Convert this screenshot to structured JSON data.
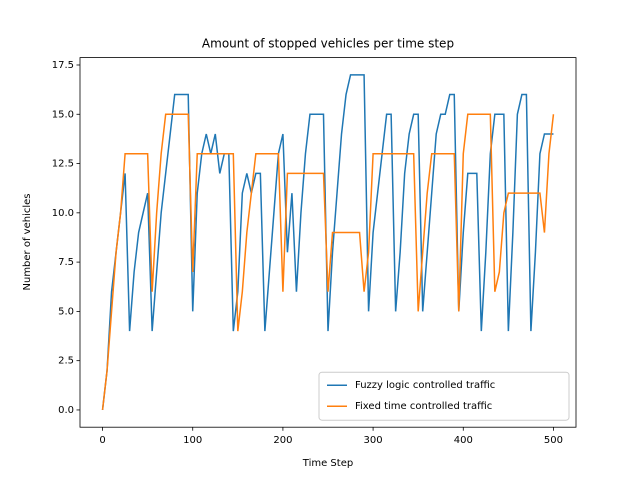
{
  "chart_data": {
    "type": "line",
    "title": "Amount of stopped vehicles per time step",
    "x_label": "Time Step",
    "y_label": "Number of vehicles",
    "x": [
      0,
      5,
      10,
      15,
      20,
      25,
      30,
      35,
      40,
      45,
      50,
      55,
      60,
      65,
      70,
      75,
      80,
      85,
      90,
      95,
      100,
      105,
      110,
      115,
      120,
      125,
      130,
      135,
      140,
      145,
      150,
      155,
      160,
      165,
      170,
      175,
      180,
      185,
      190,
      195,
      200,
      205,
      210,
      215,
      220,
      225,
      230,
      235,
      240,
      245,
      250,
      255,
      260,
      265,
      270,
      275,
      280,
      285,
      290,
      295,
      300,
      305,
      310,
      315,
      320,
      325,
      330,
      335,
      340,
      345,
      350,
      355,
      360,
      365,
      370,
      375,
      380,
      385,
      390,
      395,
      400,
      405,
      410,
      415,
      420,
      425,
      430,
      435,
      440,
      445,
      450,
      455,
      460,
      465,
      470,
      475,
      480,
      485,
      490,
      495,
      500
    ],
    "series": [
      {
        "name": "Fuzzy logic controlled traffic",
        "color": "#1f77b4",
        "values": [
          0,
          2,
          6,
          8,
          10,
          12,
          4,
          7,
          9,
          10,
          11,
          4,
          7,
          10,
          12,
          14,
          16,
          16,
          16,
          16,
          5,
          11,
          13,
          14,
          13,
          14,
          12,
          13,
          13,
          4,
          6,
          11,
          12,
          11,
          12,
          12,
          4,
          7,
          10,
          13,
          14,
          8,
          11,
          6,
          10,
          13,
          15,
          15,
          15,
          15,
          4,
          8,
          11,
          14,
          16,
          17,
          17,
          17,
          17,
          5,
          9,
          11,
          13,
          15,
          15,
          5,
          8,
          12,
          14,
          15,
          15,
          5,
          8,
          11,
          14,
          15,
          15,
          16,
          16,
          5,
          9,
          12,
          12,
          12,
          4,
          8,
          13,
          15,
          15,
          15,
          4,
          9,
          15,
          16,
          16,
          4,
          8,
          13,
          14,
          14,
          14
        ]
      },
      {
        "name": "Fixed time controlled traffic",
        "color": "#ff7f0e",
        "values": [
          0,
          2,
          5,
          8,
          10,
          13,
          13,
          13,
          13,
          13,
          13,
          6,
          10,
          13,
          15,
          15,
          15,
          15,
          15,
          15,
          7,
          13,
          13,
          13,
          13,
          13,
          13,
          13,
          13,
          13,
          4,
          6,
          9,
          11,
          13,
          13,
          13,
          13,
          13,
          13,
          6,
          12,
          12,
          12,
          12,
          12,
          12,
          12,
          12,
          12,
          6,
          9,
          9,
          9,
          9,
          9,
          9,
          9,
          6,
          8,
          13,
          13,
          13,
          13,
          13,
          13,
          13,
          13,
          13,
          13,
          5,
          8,
          11,
          13,
          13,
          13,
          13,
          13,
          13,
          5,
          13,
          15,
          15,
          15,
          15,
          15,
          15,
          6,
          7,
          10,
          11,
          11,
          11,
          11,
          11,
          11,
          11,
          11,
          9,
          13,
          15
        ]
      }
    ],
    "xlim": [
      -25,
      525
    ],
    "ylim": [
      -0.875,
      17.875
    ],
    "xticks": [
      0,
      100,
      200,
      300,
      400,
      500
    ],
    "yticks": [
      {
        "value": 0,
        "label": "0.0"
      },
      {
        "value": 2.5,
        "label": "2.5"
      },
      {
        "value": 5,
        "label": "5.0"
      },
      {
        "value": 7.5,
        "label": "7.5"
      },
      {
        "value": 10,
        "label": "10.0"
      },
      {
        "value": 12.5,
        "label": "12.5"
      },
      {
        "value": 15,
        "label": "15.0"
      },
      {
        "value": 17.5,
        "label": "17.5"
      }
    ],
    "legend": "lower right"
  }
}
